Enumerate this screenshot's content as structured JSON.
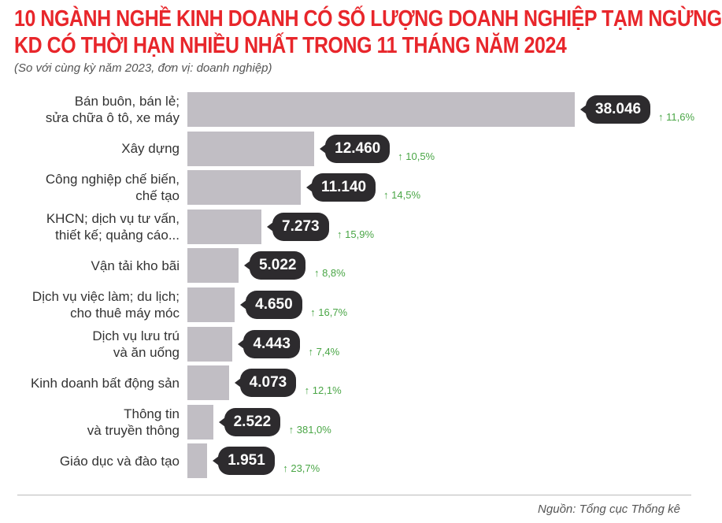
{
  "title_line1": "10 NGÀNH NGHỀ KINH DOANH CÓ SỐ LƯỢNG DOANH NGHIỆP TẠM NGỪNG",
  "title_line2": "KD CÓ THỜI HẠN NHIỀU NHẤT TRONG 11 THÁNG NĂM 2024",
  "subtitle": "(So với cùng kỳ năm 2023, đơn vị: doanh nghiệp)",
  "source": "Nguồn: Tổng cục Thống kê",
  "colors": {
    "title": "#e8262b",
    "bar": "#c1bec4",
    "badge": "#2d2b2e",
    "increase": "#4aa646"
  },
  "chart_data": {
    "type": "bar",
    "orientation": "horizontal",
    "title": "10 NGÀNH NGHỀ KINH DOANH CÓ SỐ LƯỢNG DOANH NGHIỆP TẠM NGỪNG KD CÓ THỜI HẠN NHIỀU NHẤT TRONG 11 THÁNG NĂM 2024",
    "categories": [
      "Bán buôn, bán lẻ;\nsửa chữa ô tô, xe máy",
      "Xây dựng",
      "Công nghiệp chế biến,\nchế tạo",
      "KHCN; dịch vụ tư vấn,\nthiết kế; quảng cáo...",
      "Vận tải kho bãi",
      "Dịch vụ việc làm; du lịch;\ncho thuê máy móc",
      "Dịch vụ lưu trú\nvà ăn uống",
      "Kinh doanh bất động sản",
      "Thông tin\nvà truyền thông",
      "Giáo dục và đào tạo"
    ],
    "values": [
      38046,
      12460,
      11140,
      7273,
      5022,
      4650,
      4443,
      4073,
      2522,
      1951
    ],
    "value_labels": [
      "38.046",
      "12.460",
      "11.140",
      "7.273",
      "5.022",
      "4.650",
      "4.443",
      "4.073",
      "2.522",
      "1.951"
    ],
    "change_labels": [
      "11,6%",
      "10,5%",
      "14,5%",
      "15,9%",
      "8,8%",
      "16,7%",
      "7,4%",
      "12,1%",
      "381,0%",
      "23,7%"
    ],
    "change_icon": "arrow-up-icon",
    "grid": false
  }
}
